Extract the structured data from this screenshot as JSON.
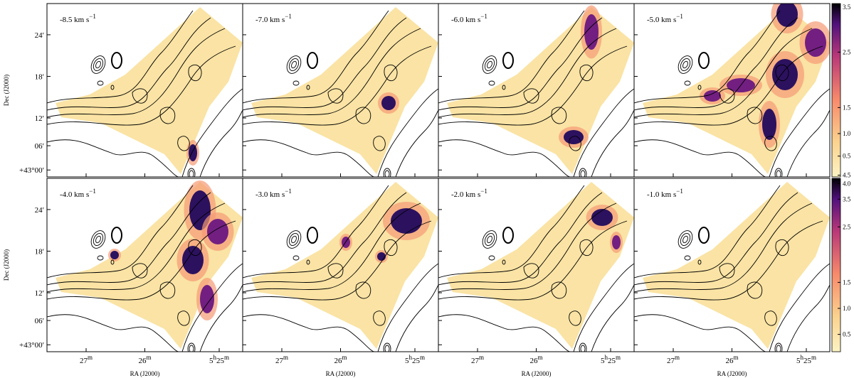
{
  "panels": [
    {
      "velocity": "-8.5 km s"
    },
    {
      "velocity": "-7.0 km s"
    },
    {
      "velocity": "-6.0 km s"
    },
    {
      "velocity": "-5.0 km s"
    },
    {
      "velocity": "-4.0 km s"
    },
    {
      "velocity": "-3.0 km s"
    },
    {
      "velocity": "-2.0 km s"
    },
    {
      "velocity": "-1.0 km s"
    }
  ],
  "unit_exponent": "−1",
  "y_axis_label": "Dec (J2000)",
  "x_axis_label": "RA (J2000)",
  "y_ticks": [
    "24′",
    "18′",
    "12′",
    "06′",
    "+43°00′"
  ],
  "x_ticks": [
    [
      "27",
      "m"
    ],
    [
      "26",
      "m"
    ],
    [
      "5",
      "h",
      "25",
      "m"
    ]
  ],
  "colorbar_top_ticks": [
    "3.5",
    "2.5",
    "1.5",
    "1.0",
    "0.5",
    "4.5"
  ],
  "colorbar_bottom_ticks": [
    "4.0",
    "3.5",
    "2.5",
    "1.5",
    "1.0",
    "0.5"
  ]
}
